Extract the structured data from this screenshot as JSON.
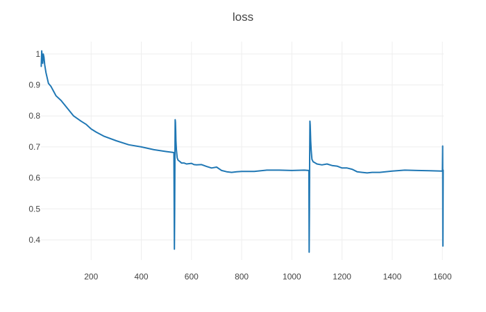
{
  "chart_data": {
    "type": "line",
    "title": "loss",
    "xlabel": "",
    "ylabel": "",
    "xlim": [
      0,
      1605
    ],
    "ylim": [
      0.335,
      1.04
    ],
    "x_ticks": [
      200,
      400,
      600,
      800,
      1000,
      1200,
      1400,
      1600
    ],
    "y_ticks": [
      0.4,
      0.5,
      0.6,
      0.7,
      0.8,
      0.9,
      1
    ],
    "grid": true,
    "legend": "none",
    "colors": {
      "line": "#1f77b4",
      "grid": "#eeeeee",
      "text": "#444444"
    },
    "series": [
      {
        "x": [
          1,
          3,
          5,
          7,
          9,
          12,
          15,
          20,
          30,
          40,
          50,
          60,
          80,
          100,
          130,
          160,
          180,
          200,
          220,
          250,
          300,
          350,
          400,
          450,
          500,
          530,
          532,
          533,
          534,
          535,
          536,
          537,
          538,
          540,
          543,
          546,
          550,
          555,
          560,
          570,
          580,
          600,
          610,
          620,
          640,
          660,
          680,
          700,
          720,
          740,
          760,
          780,
          800,
          850,
          900,
          950,
          1000,
          1050,
          1068,
          1069,
          1070,
          1071,
          1072,
          1073,
          1074,
          1075,
          1077,
          1080,
          1085,
          1090,
          1100,
          1120,
          1140,
          1160,
          1180,
          1200,
          1220,
          1240,
          1260,
          1280,
          1300,
          1320,
          1350,
          1400,
          1450,
          1500,
          1550,
          1600,
          1601,
          1602,
          1603
        ],
        "y": [
          0.96,
          1.01,
          0.985,
          0.97,
          1.0,
          0.99,
          0.965,
          0.94,
          0.905,
          0.895,
          0.88,
          0.865,
          0.85,
          0.83,
          0.8,
          0.783,
          0.773,
          0.758,
          0.748,
          0.735,
          0.72,
          0.707,
          0.7,
          0.691,
          0.685,
          0.682,
          0.37,
          0.5,
          0.68,
          0.788,
          0.78,
          0.75,
          0.72,
          0.69,
          0.665,
          0.658,
          0.655,
          0.652,
          0.648,
          0.648,
          0.645,
          0.647,
          0.643,
          0.642,
          0.643,
          0.637,
          0.632,
          0.635,
          0.624,
          0.62,
          0.618,
          0.62,
          0.621,
          0.621,
          0.625,
          0.625,
          0.624,
          0.625,
          0.624,
          0.36,
          0.5,
          0.66,
          0.783,
          0.77,
          0.75,
          0.72,
          0.69,
          0.66,
          0.652,
          0.65,
          0.645,
          0.642,
          0.645,
          0.64,
          0.638,
          0.632,
          0.632,
          0.628,
          0.62,
          0.618,
          0.616,
          0.618,
          0.618,
          0.622,
          0.625,
          0.624,
          0.623,
          0.622,
          0.703,
          0.38,
          0.625
        ]
      }
    ]
  }
}
